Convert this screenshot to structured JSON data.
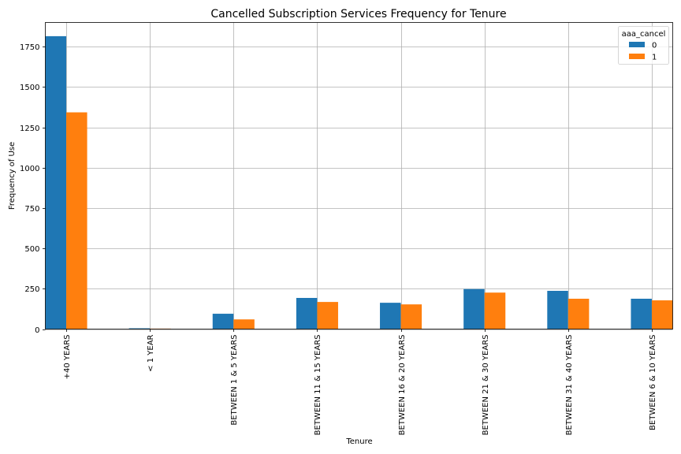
{
  "chart_data": {
    "type": "bar",
    "title": "Cancelled Subscription Services Frequency for Tenure",
    "xlabel": "Tenure",
    "ylabel": "Frequency of Use",
    "categories": [
      "+40 YEARS",
      "< 1 YEAR",
      "BETWEEN 1 & 5 YEARS",
      "BETWEEN 11 & 15 YEARS",
      "BETWEEN 16 & 20 YEARS",
      "BETWEEN 21 & 30 YEARS",
      "BETWEEN 31 & 40 YEARS",
      "BETWEEN 6 & 10 YEARS"
    ],
    "series": [
      {
        "name": "0",
        "color": "#1f77b4",
        "values": [
          1815,
          5,
          95,
          193,
          163,
          248,
          237,
          188
        ]
      },
      {
        "name": "1",
        "color": "#ff7f0e",
        "values": [
          1343,
          3,
          60,
          168,
          153,
          226,
          188,
          178
        ]
      }
    ],
    "ylim": [
      0,
      1900
    ],
    "yticks": [
      0,
      250,
      500,
      750,
      1000,
      1250,
      1500,
      1750
    ],
    "grid": true,
    "legend": {
      "title": "aaa_cancel",
      "position": "top-right"
    }
  }
}
